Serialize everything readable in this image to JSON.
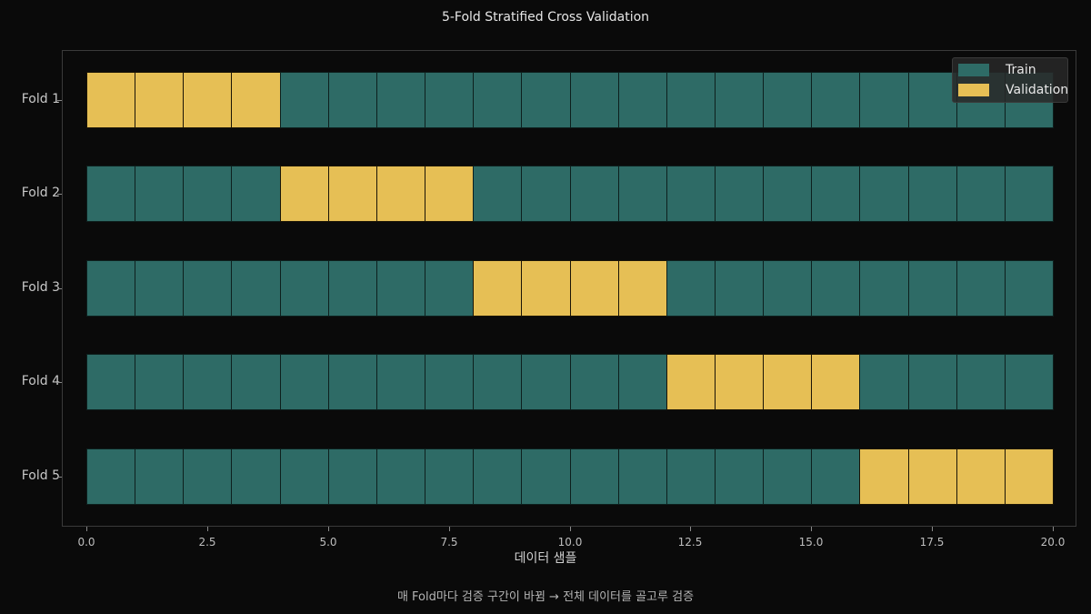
{
  "title": "5-Fold Stratified Cross Validation",
  "xlabel": "데이터 샘플",
  "caption": "매 Fold마다 검증 구간이 바뀜 → 전체 데이터를 골고루 검증",
  "colors": {
    "train": "#2e6b66",
    "validation": "#e6bf55",
    "background": "#0a0a0a"
  },
  "legend": [
    {
      "label": "Train",
      "color": "#2e6b66"
    },
    {
      "label": "Validation",
      "color": "#e6bf55"
    }
  ],
  "folds": [
    {
      "label": "Fold 1",
      "val_start": 0,
      "val_end": 4
    },
    {
      "label": "Fold 2",
      "val_start": 4,
      "val_end": 8
    },
    {
      "label": "Fold 3",
      "val_start": 8,
      "val_end": 12
    },
    {
      "label": "Fold 4",
      "val_start": 12,
      "val_end": 16
    },
    {
      "label": "Fold 5",
      "val_start": 16,
      "val_end": 20
    }
  ],
  "xticks": [
    "0.0",
    "2.5",
    "5.0",
    "7.5",
    "10.0",
    "12.5",
    "15.0",
    "17.5",
    "20.0"
  ],
  "chart_data": {
    "type": "bar",
    "orientation": "horizontal",
    "title": "5-Fold Stratified Cross Validation",
    "xlabel": "데이터 샘플",
    "ylabel": "",
    "categories": [
      "Fold 1",
      "Fold 2",
      "Fold 3",
      "Fold 4",
      "Fold 5"
    ],
    "n_samples": 20,
    "segment_width": 1,
    "series": [
      {
        "name": "Train",
        "color": "#2e6b66",
        "ranges": [
          [
            4,
            20
          ],
          [
            0,
            4,
            8,
            20
          ],
          [
            0,
            8,
            12,
            20
          ],
          [
            0,
            12,
            16,
            20
          ],
          [
            0,
            16
          ]
        ]
      },
      {
        "name": "Validation",
        "color": "#e6bf55",
        "ranges": [
          [
            0,
            4
          ],
          [
            4,
            8
          ],
          [
            8,
            12
          ],
          [
            12,
            16
          ],
          [
            16,
            20
          ]
        ]
      }
    ],
    "xlim": [
      0,
      20
    ],
    "xticks": [
      0.0,
      2.5,
      5.0,
      7.5,
      10.0,
      12.5,
      15.0,
      17.5,
      20.0
    ],
    "grid": false,
    "legend_position": "upper right",
    "annotation": "매 Fold마다 검증 구간이 바뀜 → 전체 데이터를 골고루 검증"
  }
}
